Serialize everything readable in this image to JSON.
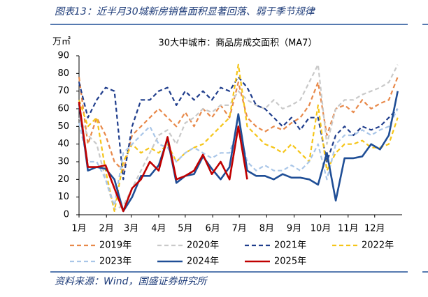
{
  "header": {
    "title": "图表13：近半月30城新房销售面积显著回落、弱于季节规律"
  },
  "footer": {
    "source": "资料来源：Wind，国盛证券研究所"
  },
  "chart_data": {
    "type": "line",
    "title": "30大中城市：商品房成交面积（MA7）",
    "y_label": "万㎡",
    "x": [
      1,
      11,
      21,
      31,
      41,
      51,
      61,
      71,
      81,
      91,
      101,
      111,
      121,
      131,
      141,
      151,
      161,
      171,
      181,
      191,
      201,
      211,
      221,
      231,
      241,
      251,
      261,
      271,
      281,
      291,
      301,
      311,
      321,
      331,
      341,
      351,
      361
    ],
    "xlim": [
      1,
      366
    ],
    "xticks": [
      {
        "value": 1,
        "label": "1月"
      },
      {
        "value": 32,
        "label": "2月"
      },
      {
        "value": 60,
        "label": "3月"
      },
      {
        "value": 91,
        "label": "4月"
      },
      {
        "value": 121,
        "label": "5月"
      },
      {
        "value": 152,
        "label": "6月"
      },
      {
        "value": 182,
        "label": "7月"
      },
      {
        "value": 213,
        "label": "8月"
      },
      {
        "value": 244,
        "label": "9月"
      },
      {
        "value": 274,
        "label": "10月"
      },
      {
        "value": 305,
        "label": "11月"
      },
      {
        "value": 335,
        "label": "12月"
      }
    ],
    "ylim": [
      0,
      90
    ],
    "yticks": [
      0,
      10,
      20,
      30,
      40,
      50,
      60,
      70,
      80,
      90
    ],
    "grid": false,
    "series": [
      {
        "name": "2019年",
        "color": "#e8894a",
        "dashed": true,
        "values": [
          78,
          40,
          55,
          45,
          30,
          25,
          45,
          50,
          55,
          60,
          55,
          50,
          58,
          50,
          60,
          55,
          62,
          55,
          75,
          55,
          50,
          47,
          50,
          48,
          52,
          55,
          62,
          75,
          45,
          60,
          62,
          58,
          65,
          60,
          63,
          65,
          78
        ]
      },
      {
        "name": "2020年",
        "color": "#c9c9c9",
        "dashed": true,
        "values": [
          55,
          45,
          40,
          20,
          3,
          5,
          15,
          25,
          35,
          45,
          48,
          40,
          52,
          55,
          60,
          58,
          62,
          62,
          70,
          65,
          62,
          60,
          65,
          60,
          62,
          65,
          75,
          85,
          40,
          60,
          65,
          65,
          68,
          70,
          72,
          75,
          85
        ]
      },
      {
        "name": "2021年",
        "color": "#1f3d8c",
        "dashed": true,
        "values": [
          75,
          55,
          65,
          72,
          70,
          20,
          50,
          65,
          65,
          70,
          72,
          62,
          70,
          65,
          70,
          65,
          72,
          70,
          78,
          72,
          62,
          60,
          55,
          50,
          55,
          48,
          55,
          55,
          30,
          45,
          50,
          45,
          50,
          48,
          50,
          55,
          60
        ]
      },
      {
        "name": "2022年",
        "color": "#f5c518",
        "dashed": true,
        "values": [
          65,
          50,
          55,
          25,
          2,
          30,
          40,
          35,
          38,
          35,
          40,
          30,
          35,
          38,
          40,
          45,
          50,
          55,
          85,
          50,
          45,
          40,
          38,
          35,
          40,
          35,
          30,
          62,
          25,
          35,
          40,
          40,
          42,
          38,
          38,
          40,
          55
        ]
      },
      {
        "name": "2023年",
        "color": "#a9c6e8",
        "dashed": true,
        "values": [
          52,
          30,
          30,
          20,
          5,
          35,
          40,
          45,
          50,
          40,
          38,
          30,
          35,
          38,
          35,
          32,
          35,
          35,
          50,
          30,
          25,
          28,
          25,
          25,
          28,
          25,
          30,
          40,
          20,
          40,
          45,
          45,
          48,
          45,
          48,
          50,
          60
        ]
      },
      {
        "name": "2024年",
        "color": "#1f4e96",
        "dashed": false,
        "values": [
          63,
          25,
          27,
          26,
          20,
          2,
          10,
          22,
          22,
          28,
          43,
          18,
          22,
          23,
          33,
          26,
          20,
          27,
          57,
          25,
          22,
          22,
          20,
          23,
          21,
          21,
          20,
          17,
          35,
          8,
          32,
          32,
          33,
          40,
          37,
          45,
          70
        ]
      },
      {
        "name": "2025年",
        "color": "#c00000",
        "dashed": false,
        "values": [
          64,
          27,
          27,
          28,
          15,
          2,
          15,
          20,
          30,
          25,
          44,
          20,
          22,
          25,
          34,
          23,
          30,
          20,
          50,
          20,
          null,
          null,
          null,
          null,
          null,
          null,
          null,
          null,
          null,
          null,
          null,
          null,
          null,
          null,
          null,
          null,
          null
        ]
      }
    ]
  }
}
